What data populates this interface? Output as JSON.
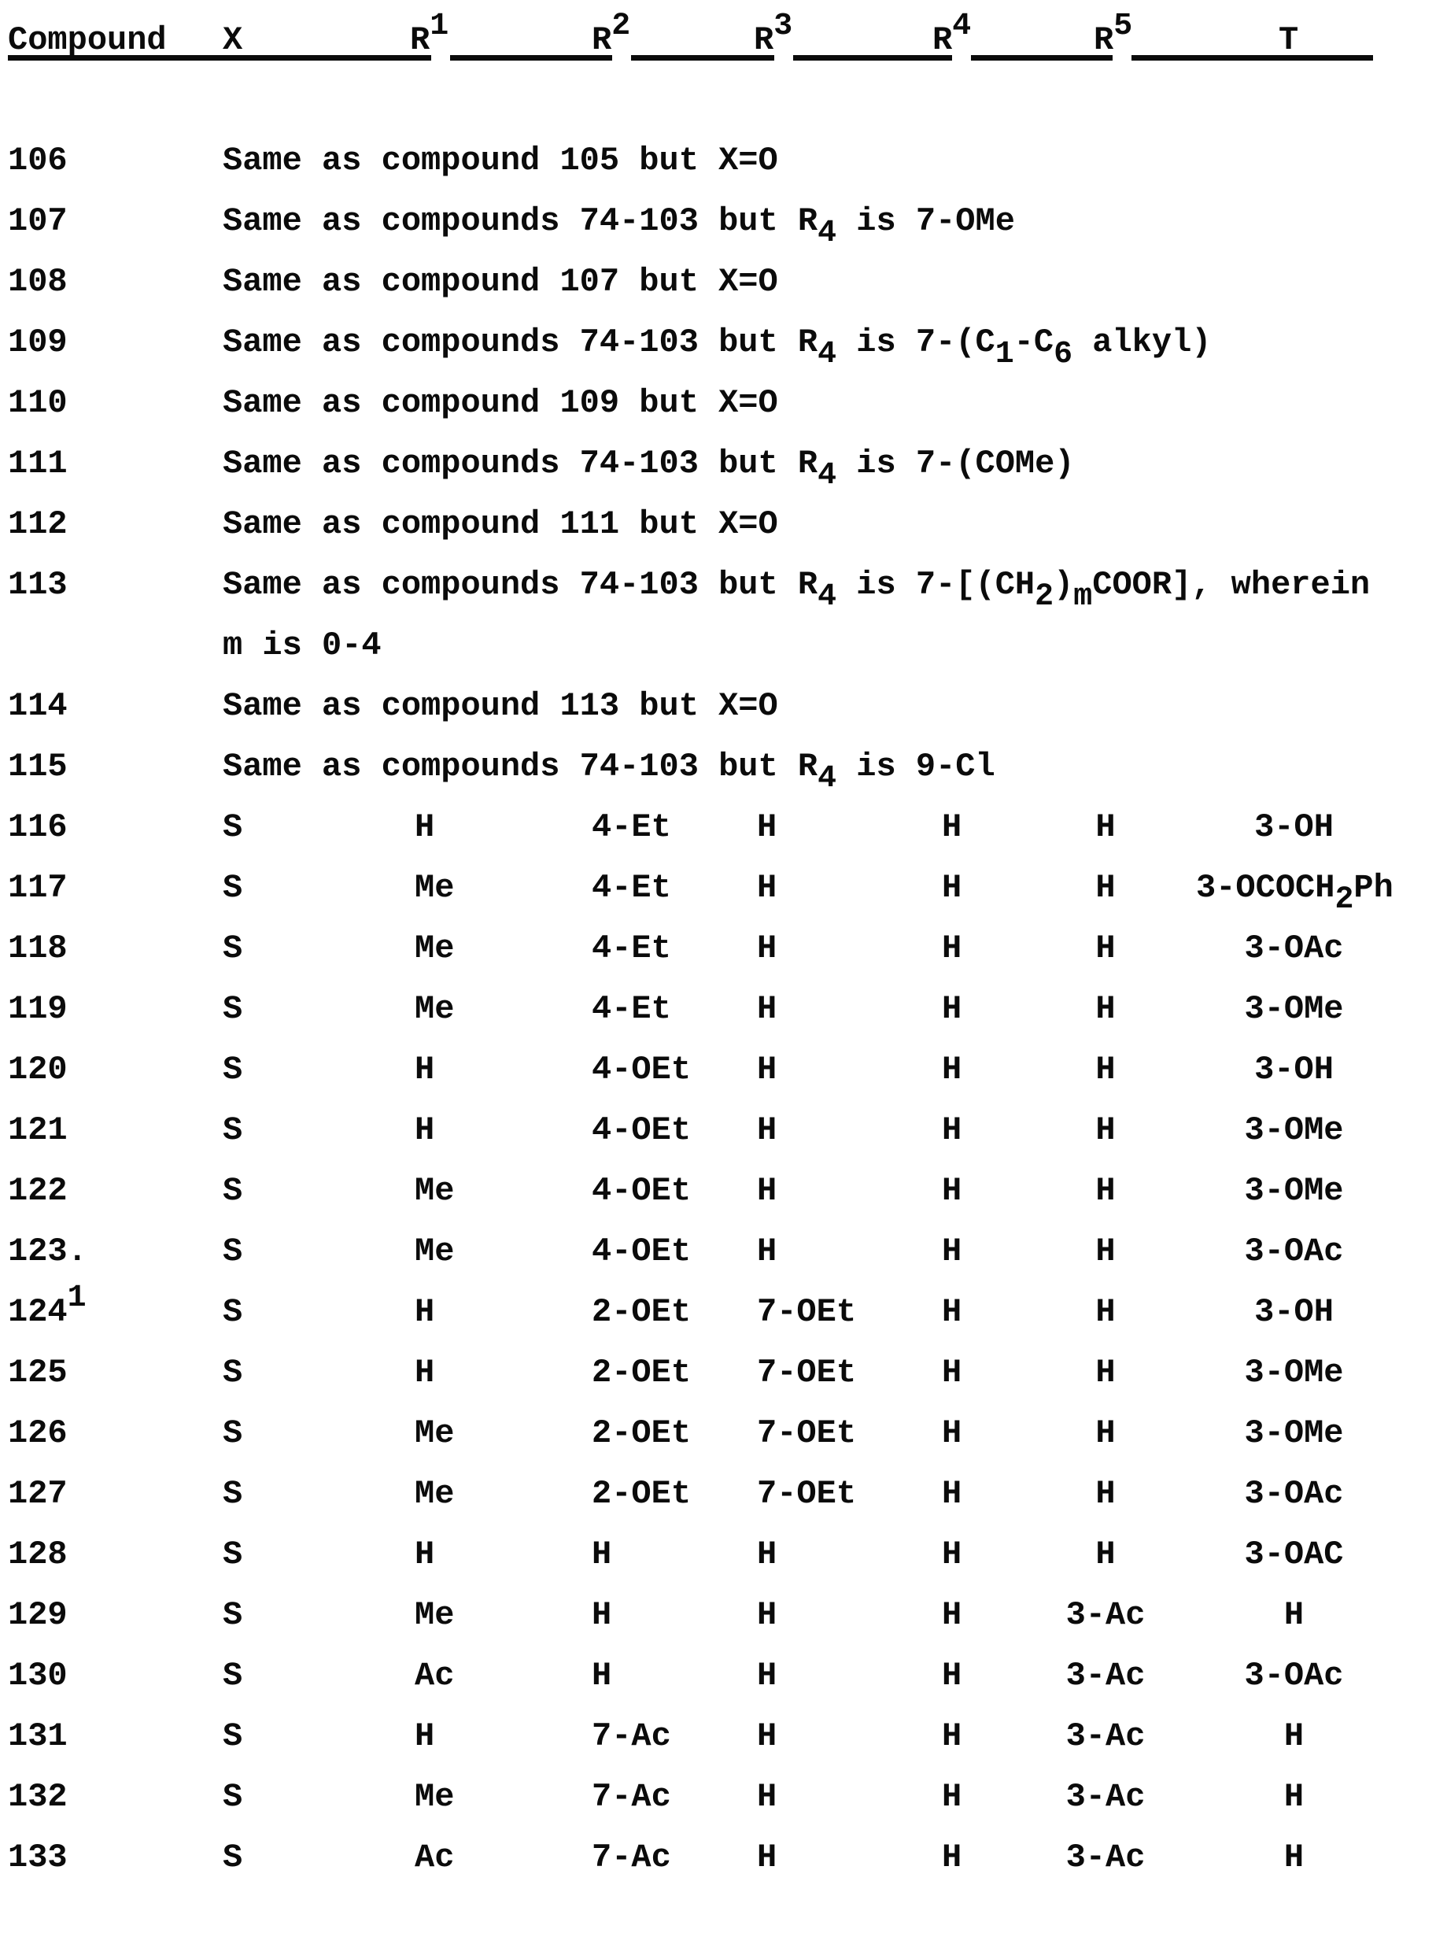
{
  "document": {
    "kind": "typewritten patent compound table",
    "ink_color": "#0b0b0b",
    "background_color": "#ffffff"
  },
  "table": {
    "headers": [
      {
        "label": "Compound",
        "sup": ""
      },
      {
        "label": "X",
        "sup": ""
      },
      {
        "label": "R",
        "sup": "1"
      },
      {
        "label": "R",
        "sup": "2"
      },
      {
        "label": "R",
        "sup": "3"
      },
      {
        "label": "R",
        "sup": "4"
      },
      {
        "label": "R",
        "sup": "5"
      },
      {
        "label": "T",
        "sup": ""
      }
    ],
    "rows": [
      {
        "num": "106",
        "kind": "note",
        "lines": [
          [
            "Same as compound 105 but X=O"
          ]
        ]
      },
      {
        "num": "107",
        "kind": "note",
        "lines": [
          [
            "Same as compounds 74-103 but R",
            {
              "sub": "4"
            },
            " is 7-OMe"
          ]
        ]
      },
      {
        "num": "108",
        "kind": "note",
        "lines": [
          [
            "Same as compound 107 but X=O"
          ]
        ]
      },
      {
        "num": "109",
        "kind": "note",
        "lines": [
          [
            "Same as compounds 74-103 but R",
            {
              "sub": "4"
            },
            " is 7-(C",
            {
              "sub": "1"
            },
            "-C",
            {
              "sub": "6"
            },
            " alkyl)"
          ]
        ]
      },
      {
        "num": "110",
        "kind": "note",
        "lines": [
          [
            "Same as compound 109 but X=O"
          ]
        ]
      },
      {
        "num": "111",
        "kind": "note",
        "lines": [
          [
            "Same as compounds 74-103 but R",
            {
              "sub": "4"
            },
            " is 7-(COMe)"
          ]
        ]
      },
      {
        "num": "112",
        "kind": "note",
        "lines": [
          [
            "Same as compound 111 but X=O"
          ]
        ]
      },
      {
        "num": "113",
        "kind": "note",
        "lines": [
          [
            "Same as compounds 74-103 but R",
            {
              "sub": "4"
            },
            " is 7-[(CH",
            {
              "sub": "2"
            },
            ")",
            {
              "sub": "m"
            },
            "COOR], wherein"
          ],
          [
            "m is 0-4"
          ]
        ]
      },
      {
        "num": "114",
        "kind": "note",
        "lines": [
          [
            "Same as compound 113 but X=O"
          ]
        ]
      },
      {
        "num": "115",
        "kind": "note",
        "lines": [
          [
            "Same as compounds 74-103 but R",
            {
              "sub": "4"
            },
            " is 9-Cl"
          ]
        ]
      },
      {
        "num": "116",
        "kind": "data",
        "x": "S",
        "r1": "H",
        "r2": "4-Et",
        "r3": "H",
        "r4": "H",
        "r5": "H",
        "t": [
          "3-OH"
        ]
      },
      {
        "num": "117",
        "kind": "data",
        "x": "S",
        "r1": "Me",
        "r2": "4-Et",
        "r3": "H",
        "r4": "H",
        "r5": "H",
        "t": [
          "3-OCOCH",
          {
            "sub": "2"
          },
          "Ph"
        ]
      },
      {
        "num": "118",
        "kind": "data",
        "x": "S",
        "r1": "Me",
        "r2": "4-Et",
        "r3": "H",
        "r4": "H",
        "r5": "H",
        "t": [
          "3-OAc"
        ]
      },
      {
        "num": "119",
        "kind": "data",
        "x": "S",
        "r1": "Me",
        "r2": "4-Et",
        "r3": "H",
        "r4": "H",
        "r5": "H",
        "t": [
          "3-OMe"
        ]
      },
      {
        "num": "120",
        "kind": "data",
        "x": "S",
        "r1": "H",
        "r2": "4-OEt",
        "r3": "H",
        "r4": "H",
        "r5": "H",
        "t": [
          "3-OH"
        ]
      },
      {
        "num": "121",
        "kind": "data",
        "x": "S",
        "r1": "H",
        "r2": "4-OEt",
        "r3": "H",
        "r4": "H",
        "r5": "H",
        "t": [
          "3-OMe"
        ]
      },
      {
        "num": "122",
        "kind": "data",
        "x": "S",
        "r1": "Me",
        "r2": "4-OEt",
        "r3": "H",
        "r4": "H",
        "r5": "H",
        "t": [
          "3-OMe"
        ]
      },
      {
        "num": "123.",
        "kind": "data",
        "x": "S",
        "r1": "Me",
        "r2": "4-OEt",
        "r3": "H",
        "r4": "H",
        "r5": "H",
        "t": [
          "3-OAc"
        ]
      },
      {
        "num": "124",
        "num_sup": "1",
        "kind": "data",
        "x": "S",
        "r1": "H",
        "r2": "2-OEt",
        "r3": "7-OEt",
        "r4": "H",
        "r5": "H",
        "t": [
          "3-OH"
        ]
      },
      {
        "num": "125",
        "kind": "data",
        "x": "S",
        "r1": "H",
        "r2": "2-OEt",
        "r3": "7-OEt",
        "r4": "H",
        "r5": "H",
        "t": [
          "3-OMe"
        ]
      },
      {
        "num": "126",
        "kind": "data",
        "x": "S",
        "r1": "Me",
        "r2": "2-OEt",
        "r3": "7-OEt",
        "r4": "H",
        "r5": "H",
        "t": [
          "3-OMe"
        ]
      },
      {
        "num": "127",
        "kind": "data",
        "x": "S",
        "r1": "Me",
        "r2": "2-OEt",
        "r3": "7-OEt",
        "r4": "H",
        "r5": "H",
        "t": [
          "3-OAc"
        ]
      },
      {
        "num": "128",
        "kind": "data",
        "x": "S",
        "r1": "H",
        "r2": "H",
        "r3": "H",
        "r4": "H",
        "r5": "H",
        "t": [
          "3-OAC"
        ]
      },
      {
        "num": "129",
        "kind": "data",
        "x": "S",
        "r1": "Me",
        "r2": "H",
        "r3": "H",
        "r4": "H",
        "r5": "3-Ac",
        "t": [
          "H"
        ]
      },
      {
        "num": "130",
        "kind": "data",
        "x": "S",
        "r1": "Ac",
        "r2": "H",
        "r3": "H",
        "r4": "H",
        "r5": "3-Ac",
        "t": [
          "3-OAc"
        ]
      },
      {
        "num": "131",
        "kind": "data",
        "x": "S",
        "r1": "H",
        "r2": "7-Ac",
        "r3": "H",
        "r4": "H",
        "r5": "3-Ac",
        "t": [
          "H"
        ]
      },
      {
        "num": "132",
        "kind": "data",
        "x": "S",
        "r1": "Me",
        "r2": "7-Ac",
        "r3": "H",
        "r4": "H",
        "r5": "3-Ac",
        "t": [
          "H"
        ]
      },
      {
        "num": "133",
        "kind": "data",
        "x": "S",
        "r1": "Ac",
        "r2": "7-Ac",
        "r3": "H",
        "r4": "H",
        "r5": "3-Ac",
        "t": [
          "H"
        ]
      }
    ]
  }
}
